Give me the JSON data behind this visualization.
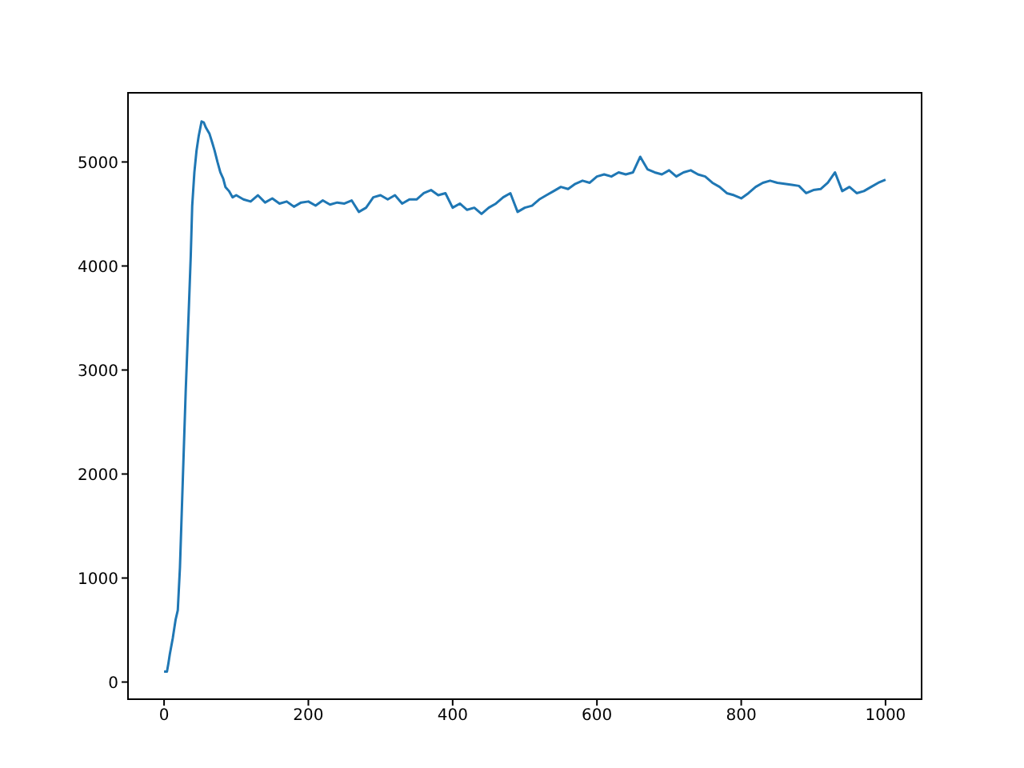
{
  "chart_data": {
    "type": "line",
    "x": [
      0,
      4,
      6,
      8,
      12,
      16,
      19,
      22,
      26,
      30,
      34,
      37,
      39,
      42,
      45,
      48,
      52,
      55,
      58,
      63,
      67,
      70,
      74,
      78,
      82,
      85,
      90,
      95,
      100,
      110,
      120,
      130,
      140,
      150,
      160,
      170,
      180,
      190,
      200,
      210,
      220,
      230,
      240,
      250,
      260,
      270,
      280,
      290,
      300,
      310,
      320,
      330,
      340,
      350,
      360,
      370,
      380,
      390,
      400,
      410,
      420,
      430,
      440,
      450,
      460,
      470,
      480,
      490,
      500,
      510,
      520,
      530,
      540,
      550,
      560,
      570,
      580,
      590,
      600,
      610,
      620,
      630,
      640,
      650,
      660,
      670,
      680,
      690,
      700,
      710,
      720,
      730,
      740,
      750,
      760,
      770,
      780,
      790,
      800,
      810,
      820,
      830,
      840,
      850,
      860,
      870,
      880,
      890,
      900,
      910,
      920,
      930,
      940,
      950,
      960,
      970,
      980,
      990,
      1000
    ],
    "series": [
      {
        "color": "#1f77b4",
        "values": [
          100,
          100,
          180,
          270,
          420,
          600,
          690,
          1100,
          1950,
          2800,
          3530,
          4100,
          4580,
          4900,
          5110,
          5250,
          5390,
          5380,
          5330,
          5270,
          5180,
          5110,
          5000,
          4900,
          4840,
          4760,
          4720,
          4660,
          4680,
          4640,
          4620,
          4680,
          4610,
          4650,
          4600,
          4620,
          4570,
          4610,
          4620,
          4580,
          4630,
          4590,
          4610,
          4600,
          4630,
          4520,
          4560,
          4660,
          4680,
          4640,
          4680,
          4600,
          4640,
          4640,
          4700,
          4730,
          4680,
          4700,
          4560,
          4600,
          4540,
          4560,
          4500,
          4560,
          4600,
          4660,
          4700,
          4520,
          4560,
          4580,
          4640,
          4680,
          4720,
          4760,
          4740,
          4790,
          4820,
          4800,
          4860,
          4880,
          4860,
          4900,
          4880,
          4900,
          5050,
          4930,
          4900,
          4880,
          4920,
          4860,
          4900,
          4920,
          4880,
          4860,
          4800,
          4760,
          4700,
          4680,
          4650,
          4700,
          4760,
          4800,
          4820,
          4800,
          4790,
          4780,
          4770,
          4700,
          4730,
          4740,
          4800,
          4900,
          4720,
          4760,
          4700,
          4720,
          4760,
          4800,
          4830
        ]
      }
    ],
    "xlim": [
      -50,
      1050
    ],
    "ylim": [
      -165,
      5665
    ],
    "xticks": [
      0,
      200,
      400,
      600,
      800,
      1000
    ],
    "yticks": [
      0,
      1000,
      2000,
      3000,
      4000,
      5000
    ],
    "grid": false,
    "legend": false
  }
}
